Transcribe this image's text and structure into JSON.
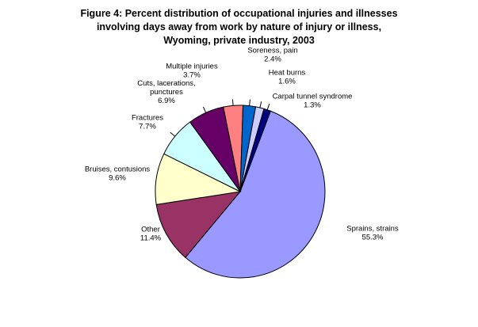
{
  "title_lines": [
    "Figure 4: Percent distribution of occupational injuries and illnesses",
    "involving days away from work by nature of injury or illness,",
    "Wyoming, private industry, 2003"
  ],
  "chart_data": {
    "type": "pie",
    "title": "Figure 4: Percent distribution of occupational injuries and illnesses involving days away from work by nature of injury or illness, Wyoming, private industry, 2003",
    "unit": "%",
    "slices": [
      {
        "label": "Sprains, strains",
        "value": 55.3,
        "value_text": "55.3%",
        "color": "#9999ff"
      },
      {
        "label": "Other",
        "value": 11.4,
        "value_text": "11.4%",
        "color": "#993366"
      },
      {
        "label": "Bruises, contusions",
        "value": 9.6,
        "value_text": "9.6%",
        "color": "#ffffcc"
      },
      {
        "label": "Fractures",
        "value": 7.7,
        "value_text": "7.7%",
        "color": "#ccffff"
      },
      {
        "label": "Cuts, lacerations, punctures",
        "label_lines": [
          "Cuts, lacerations,",
          "punctures"
        ],
        "value": 6.9,
        "value_text": "6.9%",
        "color": "#660066"
      },
      {
        "label": "Multiple injuries",
        "value": 3.7,
        "value_text": "3.7%",
        "color": "#ff8080"
      },
      {
        "label": "Soreness, pain",
        "value": 2.4,
        "value_text": "2.4%",
        "color": "#0066cc"
      },
      {
        "label": "Heat burns",
        "value": 1.6,
        "value_text": "1.6%",
        "color": "#ccccff"
      },
      {
        "label": "Carpal tunnel syndrome",
        "value": 1.3,
        "value_text": "1.3%",
        "color": "#000080"
      }
    ]
  }
}
